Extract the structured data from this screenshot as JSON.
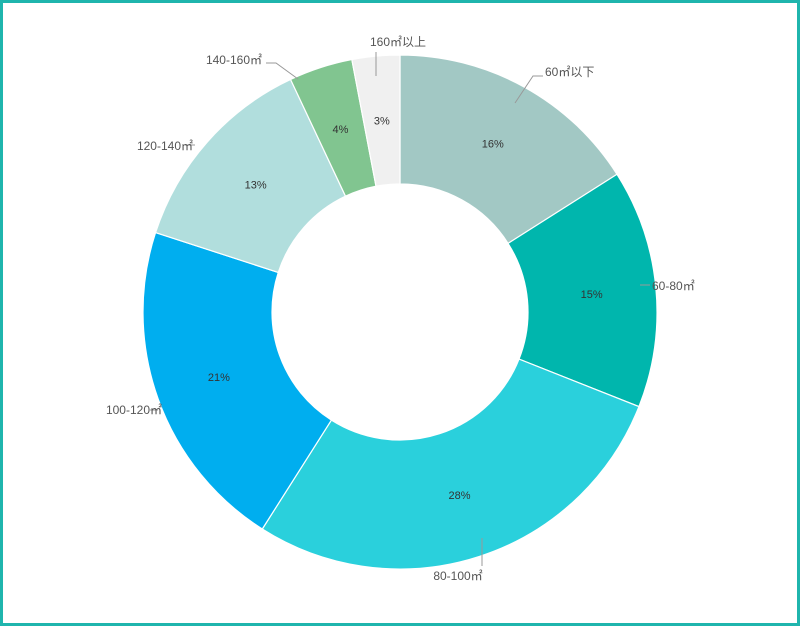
{
  "chart_data": {
    "type": "pie",
    "donut": true,
    "start": "top, clockwise",
    "categories": [
      "60㎡以下",
      "60-80㎡",
      "80-100㎡",
      "100-120㎡",
      "120-140㎡",
      "140-160㎡",
      "160㎡以上"
    ],
    "values": [
      16,
      15,
      28,
      21,
      13,
      4,
      3
    ],
    "percent_labels": [
      "16%",
      "15%",
      "28%",
      "21%",
      "13%",
      "4%",
      "3%"
    ],
    "colors": [
      "#a2c8c4",
      "#00b6ad",
      "#2ad0dc",
      "#00aeef",
      "#b1dedd",
      "#81c590",
      "#f0f0f0"
    ]
  }
}
